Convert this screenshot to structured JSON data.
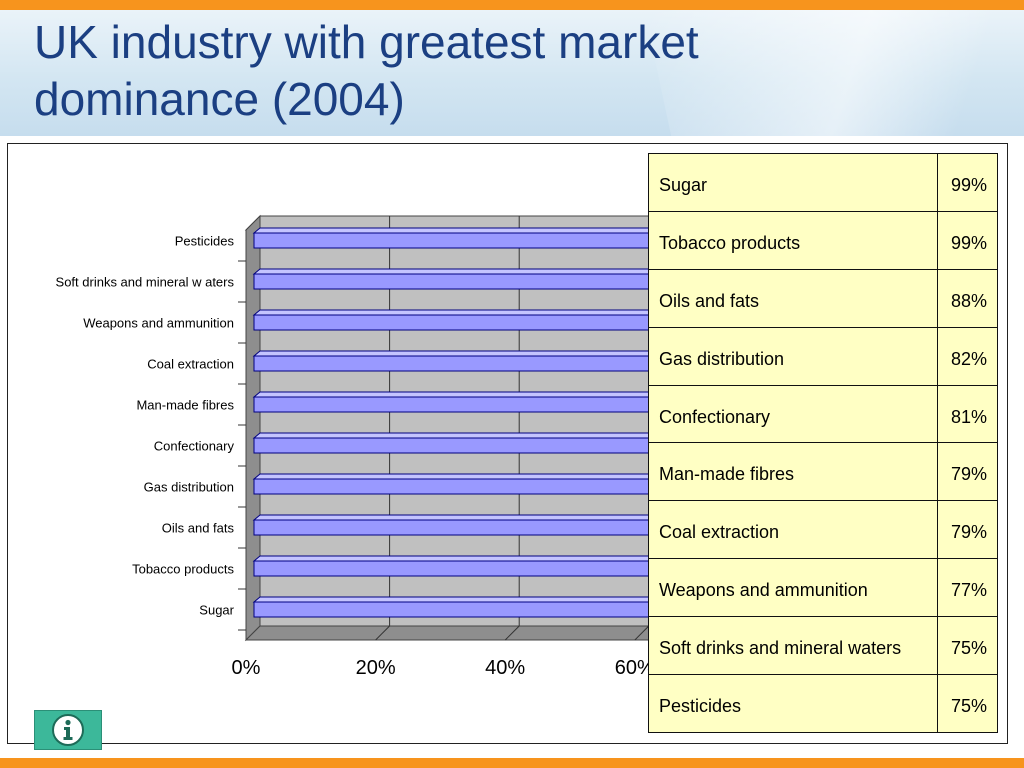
{
  "title": "UK industry with greatest market dominance (2004)",
  "colors": {
    "bar_fill": "#9999ff",
    "bar_stroke": "#000080",
    "plot_back": "#c0c0c0",
    "table_fill": "#ffffc4",
    "title_color": "#1b3f82",
    "accent": "#f7941d",
    "info_button": "#3cb89a"
  },
  "chart_data": {
    "type": "bar",
    "orientation": "horizontal",
    "categories": [
      "Pesticides",
      "Soft drinks and mineral w aters",
      "Weapons and ammunition",
      "Coal extraction",
      "Man-made fibres",
      "Confectionary",
      "Gas distribution",
      "Oils and fats",
      "Tobacco products",
      "Sugar"
    ],
    "values": [
      75,
      75,
      77,
      79,
      79,
      81,
      82,
      88,
      99,
      99
    ],
    "x_ticks": [
      "0%",
      "20%",
      "40%",
      "60%"
    ],
    "xlim": [
      0,
      100
    ],
    "grid": true,
    "style": "3d",
    "title": "",
    "xlabel": "",
    "ylabel": ""
  },
  "table": {
    "rows": [
      {
        "label": "Sugar",
        "value": "99%"
      },
      {
        "label": "Tobacco products",
        "value": "99%"
      },
      {
        "label": "Oils and fats",
        "value": "88%"
      },
      {
        "label": "Gas distribution",
        "value": "82%"
      },
      {
        "label": "Confectionary",
        "value": "81%"
      },
      {
        "label": "Man-made fibres",
        "value": "79%"
      },
      {
        "label": "Coal extraction",
        "value": "79%"
      },
      {
        "label": "Weapons and ammunition",
        "value": "77%"
      },
      {
        "label": "Soft drinks and mineral waters",
        "value": "75%"
      },
      {
        "label": "Pesticides",
        "value": "75%"
      }
    ]
  },
  "info_button": {
    "icon": "info-icon"
  }
}
